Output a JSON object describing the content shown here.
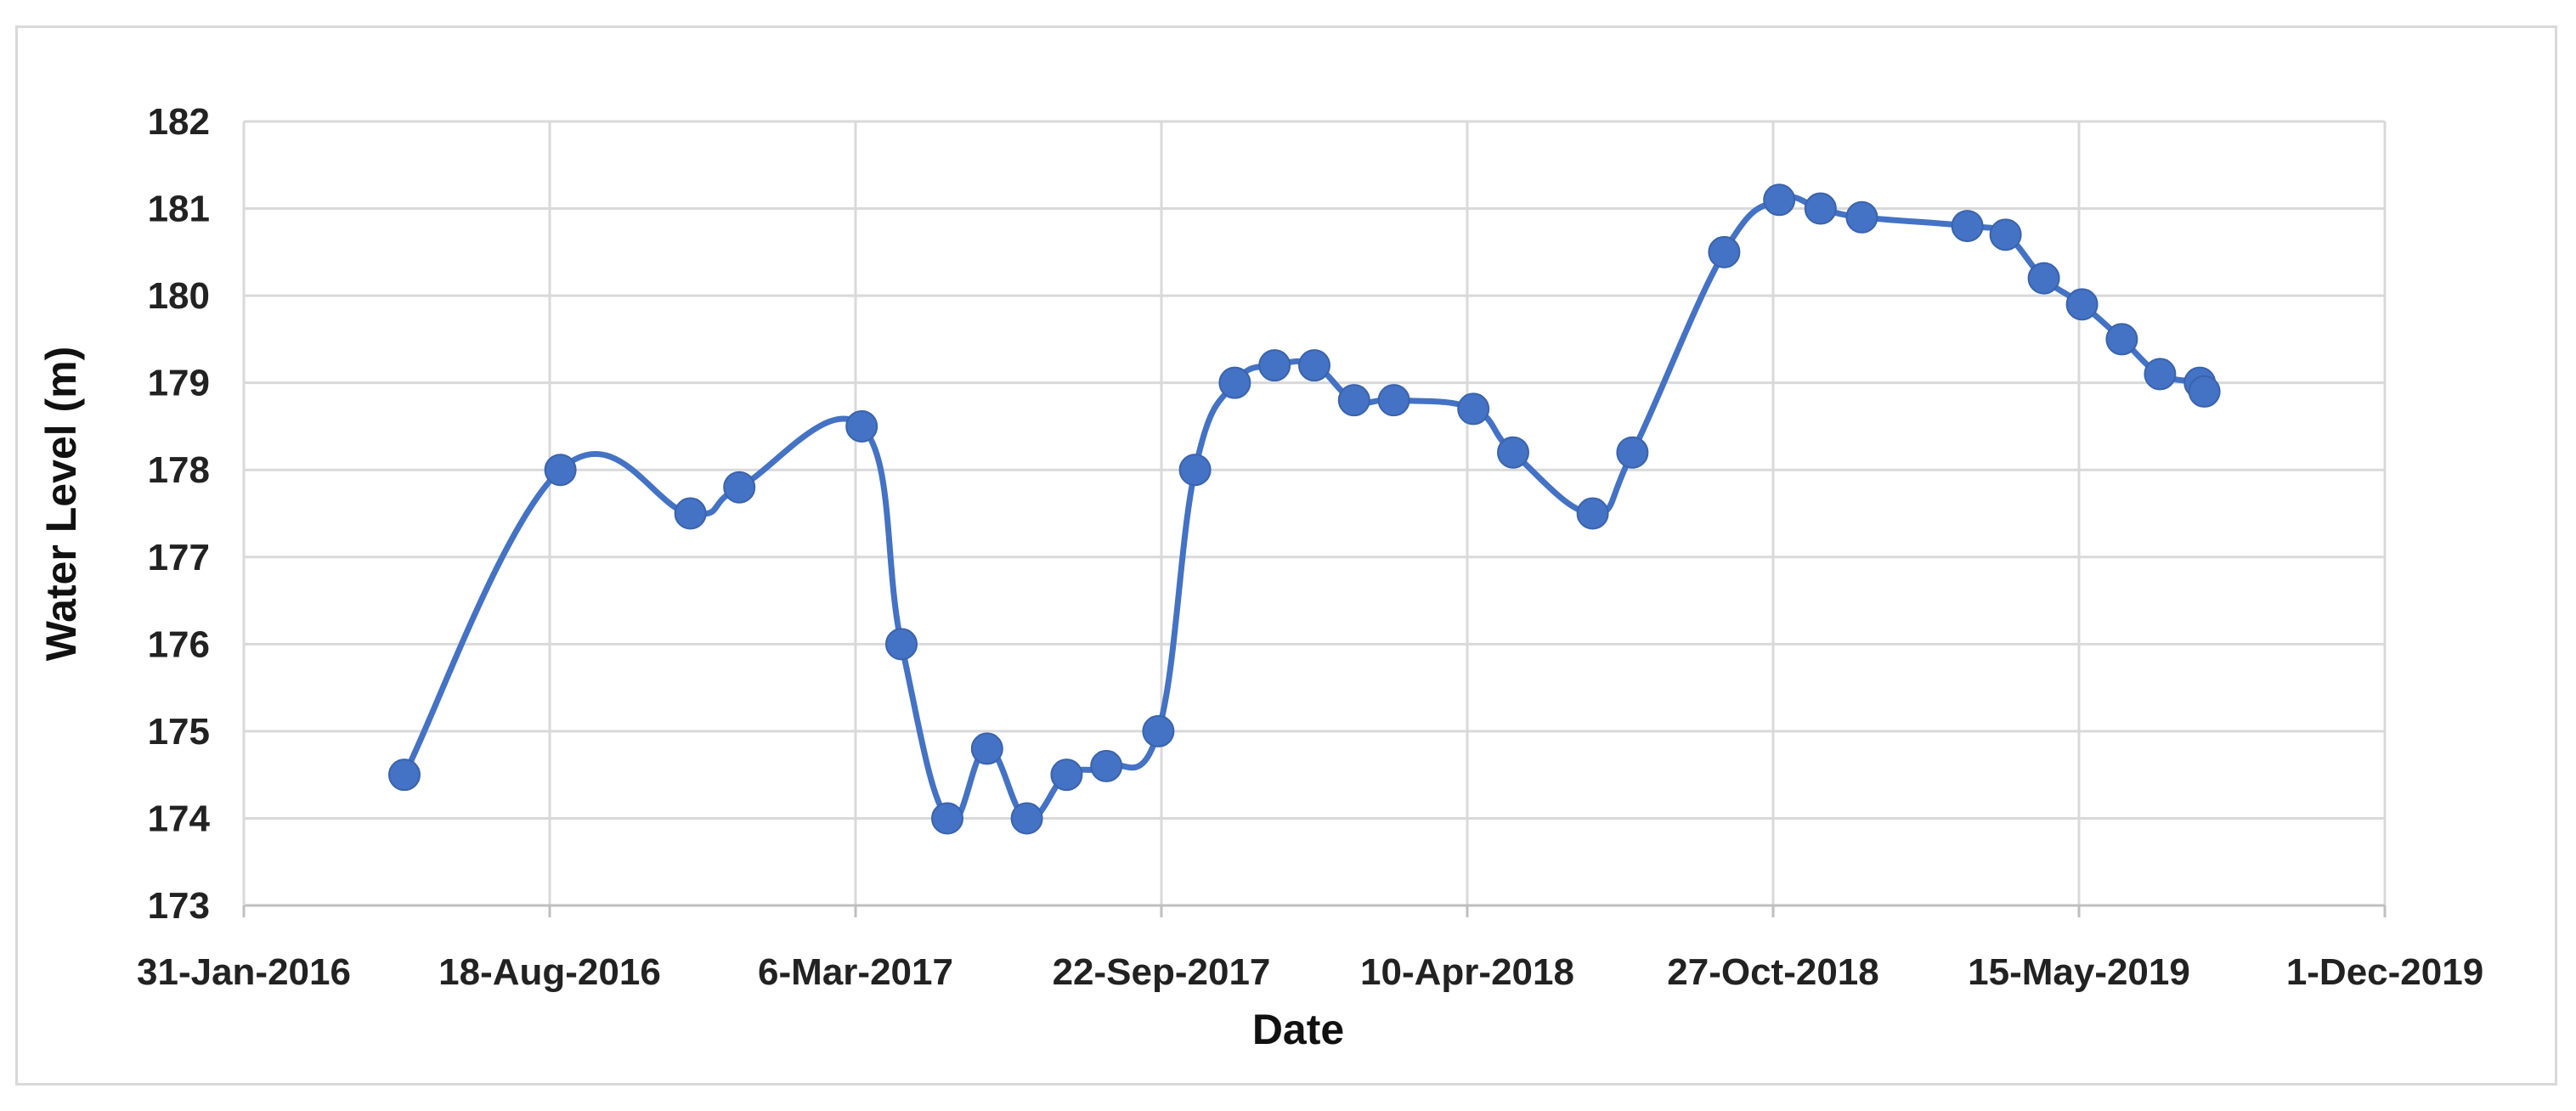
{
  "chart_data": {
    "type": "line",
    "title": "",
    "xlabel": "Date",
    "ylabel": "Water Level (m)",
    "x_axis_type": "date",
    "xlim": [
      "2016-01-31",
      "2019-12-01"
    ],
    "x_ticks": [
      {
        "date": "2016-01-31",
        "label": "31-Jan-2016"
      },
      {
        "date": "2016-08-18",
        "label": "18-Aug-2016"
      },
      {
        "date": "2017-03-06",
        "label": "6-Mar-2017"
      },
      {
        "date": "2017-09-22",
        "label": "22-Sep-2017"
      },
      {
        "date": "2018-04-10",
        "label": "10-Apr-2018"
      },
      {
        "date": "2018-10-27",
        "label": "27-Oct-2018"
      },
      {
        "date": "2019-05-15",
        "label": "15-May-2019"
      },
      {
        "date": "2019-12-01",
        "label": "1-Dec-2019"
      }
    ],
    "ylim": [
      173,
      182
    ],
    "y_ticks": [
      "173",
      "174",
      "175",
      "176",
      "177",
      "178",
      "179",
      "180",
      "181",
      "182"
    ],
    "grid": true,
    "legend": "none",
    "line_style": "smooth",
    "marker": "circle",
    "color": "#4472c4",
    "series": [
      {
        "x": [
          "2016-05-15",
          "2016-08-25",
          "2016-11-18",
          "2016-12-20",
          "2017-03-10",
          "2017-04-05",
          "2017-05-05",
          "2017-05-31",
          "2017-06-26",
          "2017-07-22",
          "2017-08-17",
          "2017-09-20",
          "2017-10-14",
          "2017-11-09",
          "2017-12-05",
          "2017-12-31",
          "2018-01-26",
          "2018-02-21",
          "2018-04-14",
          "2018-05-10",
          "2018-07-01",
          "2018-07-27",
          "2018-09-25",
          "2018-10-31",
          "2018-11-27",
          "2018-12-24",
          "2019-03-03",
          "2019-03-28",
          "2019-04-22",
          "2019-05-17",
          "2019-06-12",
          "2019-07-07",
          "2019-08-02",
          "2019-08-05"
        ],
        "values": [
          174.5,
          178.0,
          177.5,
          177.8,
          178.5,
          176.0,
          174.0,
          174.8,
          174.0,
          174.5,
          174.6,
          175.0,
          178.0,
          179.0,
          179.2,
          179.2,
          178.8,
          178.8,
          178.7,
          178.2,
          177.5,
          178.2,
          180.5,
          181.1,
          181.0,
          180.9,
          180.8,
          180.7,
          180.2,
          179.9,
          179.5,
          179.1,
          179.0,
          178.9
        ]
      }
    ]
  }
}
